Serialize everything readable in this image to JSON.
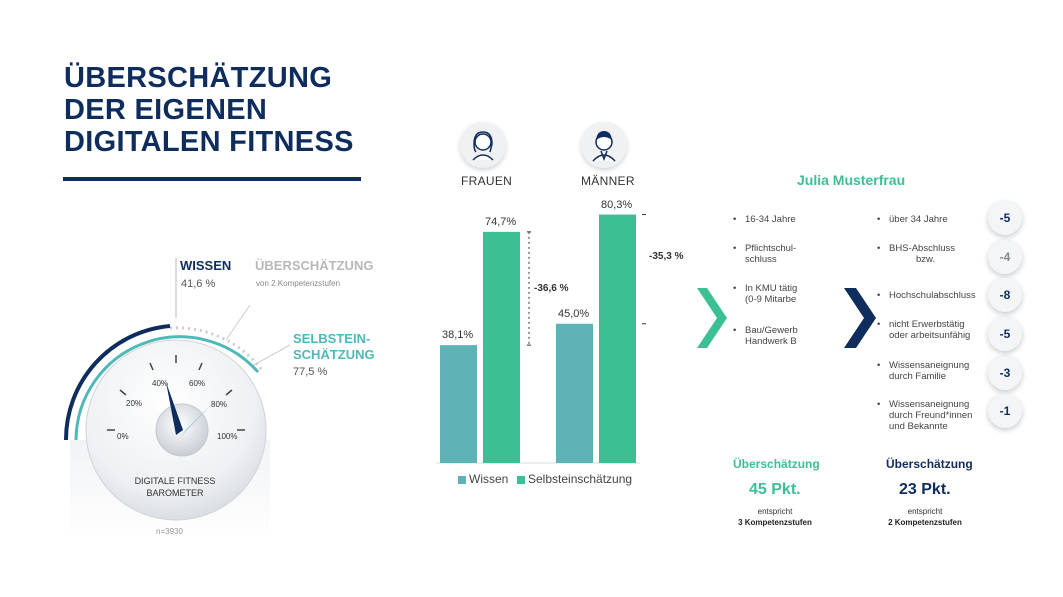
{
  "title": {
    "line1": "ÜBERSCHÄTZUNG",
    "line2": "DER EIGENEN",
    "line3": "DIGITALEN FITNESS"
  },
  "gauge": {
    "wissen_label": "WISSEN",
    "wissen_value": "41,6 %",
    "ueberschaetzung_label": "ÜBERSCHÄTZUNG",
    "ueberschaetzung_sub": "von 2 Kompetenzstufen",
    "selbst_label_1": "SELBSTEIN-",
    "selbst_label_2": "SCHÄTZUNG",
    "selbst_value": "77,5 %",
    "ticks": [
      "0%",
      "20%",
      "40%",
      "60%",
      "80%",
      "100%"
    ],
    "caption_1": "DIGITALE FITNESS",
    "caption_2": "BAROMETER",
    "n_label": "n=3930",
    "wissen_level": 41.6,
    "selbst_level": 77.5,
    "colors": {
      "wissen": "#0f2d5c",
      "selbst": "#4fb8b8"
    }
  },
  "chart_data": {
    "type": "bar",
    "categories": [
      "FRAUEN",
      "MÄNNER"
    ],
    "series": [
      {
        "name": "Wissen",
        "values": [
          38.1,
          45.0
        ],
        "labels": [
          "38,1%",
          "45,0%"
        ],
        "color": "#5fb3b7"
      },
      {
        "name": "Selbsteinschätzung",
        "values": [
          74.7,
          80.3
        ],
        "labels": [
          "74,7%",
          "80,3%"
        ],
        "color": "#3cbf93"
      }
    ],
    "differences": [
      "-36,6 %",
      "-35,3 %"
    ],
    "ylim": [
      0,
      85
    ],
    "legend": "bottom"
  },
  "profile": {
    "title": "Julia Musterfrau",
    "left_items": [
      {
        "l1": "16-34 Jahre",
        "l2": ""
      },
      {
        "l1": "Pflichtschul-",
        "l2": "schluss"
      },
      {
        "l1": "In KMU tätig",
        "l2": "(0-9 Mitarbe"
      },
      {
        "l1": "Bau/Gewerb",
        "l2": "Handwerk B"
      }
    ],
    "right_items": [
      {
        "l1": "über 34 Jahre",
        "l2": "",
        "score": "-5"
      },
      {
        "l1": "BHS-Abschluss",
        "l2": "bzw.",
        "score": "-4"
      },
      {
        "l1": "Hochschulabschluss",
        "l2": "",
        "score": "-8"
      },
      {
        "l1": "nicht Erwerbstätig",
        "l2": "oder arbeitsunfähig",
        "score": "-5"
      },
      {
        "l1": "Wissensaneignung",
        "l2": "durch Familie",
        "score": "-3"
      },
      {
        "l1": "Wissensaneignung",
        "l2": "durch Freund*innen",
        "l3": "und Bekannte",
        "score": "-1"
      }
    ],
    "summary_left": {
      "title": "Überschätzung",
      "points": "45 Pkt.",
      "sub": "entspricht",
      "levels": "3 Kompetenzstufen"
    },
    "summary_right": {
      "title": "Überschätzung",
      "points": "23 Pkt.",
      "sub": "entspricht",
      "levels": "2 Kompetenzstufen"
    },
    "colors": {
      "green": "#3cbf93",
      "navy": "#0f2d5c"
    }
  }
}
